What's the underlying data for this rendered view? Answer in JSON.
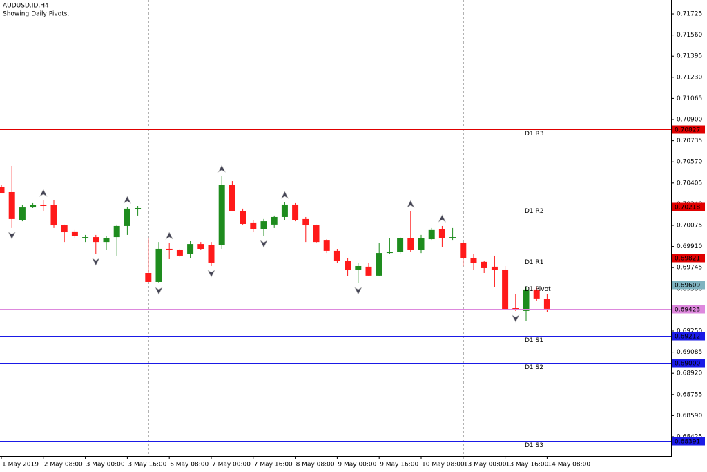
{
  "chart_data": {
    "type": "candlestick",
    "title": "AUDUSD.ID,H4",
    "subtitle": "Showing Daily Pivots.",
    "x": [
      "1 May 2019",
      null,
      null,
      null,
      "2 May 08:00",
      null,
      null,
      null,
      "3 May 00:00",
      null,
      null,
      null,
      "3 May 16:00",
      null,
      null,
      null,
      "6 May 08:00",
      null,
      null,
      null,
      "7 May 00:00",
      null,
      null,
      null,
      "7 May 16:00",
      null,
      null,
      null,
      "8 May 08:00",
      null,
      null,
      null,
      "9 May 00:00",
      null,
      null,
      null,
      "9 May 16:00",
      null,
      null,
      null,
      "10 May 08:00",
      null,
      null,
      null,
      "13 May 00:00",
      null,
      null,
      null,
      "13 May 16:00",
      null,
      null,
      null,
      "14 May 08:00"
    ],
    "open": [
      0.70377,
      0.70334,
      0.70118,
      0.70215,
      0.70232,
      0.70232,
      0.70075,
      0.70027,
      0.69973,
      0.69983,
      0.69945,
      0.69983,
      0.7007,
      0.70205,
      0.69703,
      0.69633,
      0.69892,
      0.69881,
      0.69849,
      0.69929,
      0.69919,
      0.69919,
      0.70388,
      0.70188,
      0.70097,
      0.70043,
      0.70081,
      0.7014,
      0.70237,
      0.70124,
      0.70075,
      0.69956,
      0.69876,
      0.698,
      0.6973,
      0.69752,
      0.69682,
      0.69859,
      0.69865,
      0.69973,
      0.69881,
      0.69967,
      0.70043,
      0.69973,
      0.69935,
      0.69817,
      0.6979,
      0.69752,
      0.6973,
      0.69428,
      0.69407,
      0.69574,
      0.69498
    ],
    "high": [
      0.70388,
      0.70539,
      0.70237,
      0.70248,
      0.70269,
      0.70269,
      0.70081,
      0.70038,
      0.7,
      0.7,
      0.69989,
      0.70081,
      0.70215,
      0.70226,
      0.69973,
      0.69945,
      0.69935,
      0.69892,
      0.69951,
      0.69945,
      0.69945,
      0.70458,
      0.7042,
      0.70205,
      0.70118,
      0.70124,
      0.70151,
      0.70253,
      0.70248,
      0.7014,
      0.70081,
      0.69967,
      0.69887,
      0.69817,
      0.69784,
      0.69779,
      0.69935,
      0.69973,
      0.69983,
      0.70183,
      0.7,
      0.70054,
      0.7007,
      0.70054,
      0.69945,
      0.69849,
      0.698,
      0.69838,
      0.69757,
      0.69541,
      0.69595,
      0.69595,
      0.69541
    ],
    "low": [
      0.70323,
      0.70054,
      0.70107,
      0.7021,
      0.70188,
      0.70054,
      0.69945,
      0.69973,
      0.69945,
      0.69849,
      0.69881,
      0.69838,
      0.7,
      0.70151,
      0.69633,
      0.69622,
      0.69811,
      0.69827,
      0.69817,
      0.69881,
      0.69757,
      0.69892,
      0.70188,
      0.70081,
      0.70021,
      0.69989,
      0.70054,
      0.70118,
      0.70107,
      0.69945,
      0.69935,
      0.69859,
      0.69784,
      0.69676,
      0.69622,
      0.69676,
      0.69676,
      0.69849,
      0.69849,
      0.69865,
      0.69859,
      0.69956,
      0.69903,
      0.69956,
      0.69757,
      0.6973,
      0.69703,
      0.69595,
      0.69417,
      0.69407,
      0.69326,
      0.69487,
      0.69396
    ],
    "close": [
      0.70323,
      0.70124,
      0.70215,
      0.70232,
      0.70226,
      0.70075,
      0.70021,
      0.69989,
      0.69983,
      0.69945,
      0.69978,
      0.7007,
      0.70205,
      0.7021,
      0.69633,
      0.69892,
      0.69881,
      0.69838,
      0.69929,
      0.69887,
      0.69784,
      0.70388,
      0.70188,
      0.70086,
      0.70043,
      0.70107,
      0.7014,
      0.70237,
      0.70118,
      0.70075,
      0.69945,
      0.69876,
      0.69795,
      0.6973,
      0.69757,
      0.69682,
      0.69859,
      0.6987,
      0.69978,
      0.69881,
      0.69973,
      0.70038,
      0.69973,
      0.69983,
      0.69817,
      0.69779,
      0.69741,
      0.6973,
      0.69417,
      0.69417,
      0.69574,
      0.69504,
      0.69423
    ],
    "up_color": "#1e8c1e",
    "down_color": "#ff1a1a",
    "ylim": [
      0.68274,
      0.71833
    ],
    "yticks": [
      0.71725,
      {
        "value": 0.7156,
        "label": "0.71560"
      },
      0.71395,
      {
        "value": 0.7123,
        "label": "0.71230"
      },
      0.71065,
      {
        "value": 0.709,
        "label": "0.70900"
      },
      0.70735,
      {
        "value": 0.7057,
        "label": "0.70570"
      },
      0.70405,
      {
        "value": 0.7024,
        "label": "0.70240"
      },
      0.70075,
      {
        "value": 0.6991,
        "label": "0.69910"
      },
      0.69745,
      {
        "value": 0.6958,
        "label": "0.69580"
      },
      {
        "value": 0.6925,
        "label": "0.69250"
      },
      0.69085,
      {
        "value": 0.6892,
        "label": "0.68920"
      },
      0.68755,
      {
        "value": 0.6859,
        "label": "0.68590"
      },
      0.68425
    ],
    "levels": [
      {
        "name": "D1 R3",
        "value": 0.70827,
        "color": "#e00000"
      },
      {
        "name": "D1 R2",
        "value": 0.70218,
        "color": "#e00000"
      },
      {
        "name": "D1 R1",
        "value": 0.69821,
        "color": "#e00000"
      },
      {
        "name": "D1 Pivot",
        "value": 0.69609,
        "color": "#7fb3c0"
      },
      {
        "value": 0.69423,
        "color": "#dd88dd"
      },
      {
        "name": "D1 S1",
        "value": 0.69212,
        "color": "#1a1ae6"
      },
      {
        "name": "D1 S2",
        "value": 0.69,
        "label": "0.69000",
        "color": "#1a1ae6"
      },
      {
        "name": "D1 S3",
        "value": 0.68391,
        "color": "#1a1ae6"
      }
    ]
  }
}
